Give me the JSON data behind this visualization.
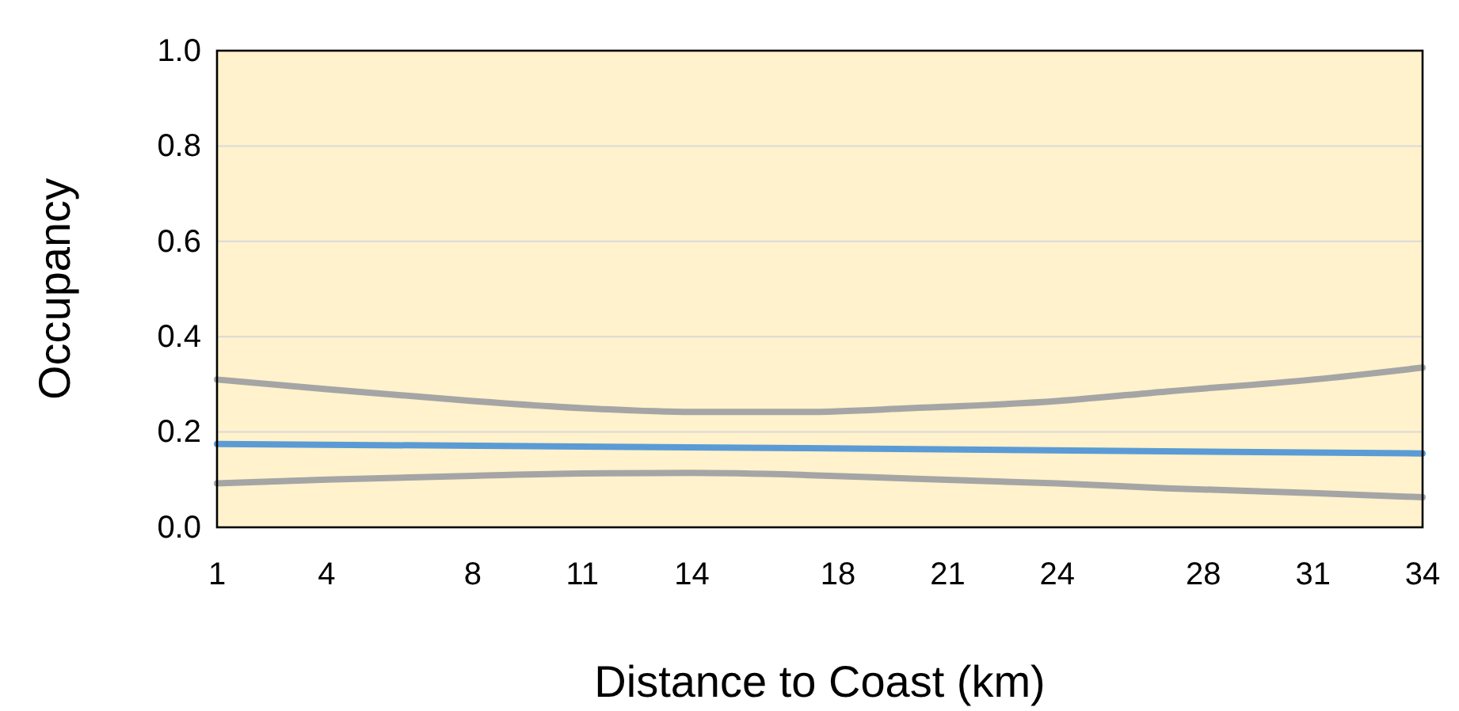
{
  "chart_data": {
    "type": "line",
    "xlabel": "Distance to Coast (km)",
    "ylabel": "Occupancy",
    "xlim": [
      1,
      34
    ],
    "xticks": [
      1,
      4,
      8,
      11,
      14,
      18,
      21,
      24,
      28,
      31,
      34
    ],
    "ylim": [
      0,
      1
    ],
    "yticks": [
      {
        "value": 0,
        "label": "0.0"
      },
      {
        "value": 0.2,
        "label": "0.2"
      },
      {
        "value": 0.4,
        "label": "0.4"
      },
      {
        "value": 0.6,
        "label": "0.6"
      },
      {
        "value": 0.8,
        "label": "0.8"
      },
      {
        "value": 1,
        "label": "1.0"
      }
    ],
    "grid": "y",
    "marker": "none",
    "line_style": "solid",
    "series": [
      {
        "color": "#a5a5a5",
        "x": [
          1,
          4,
          8,
          11,
          14,
          17,
          20,
          24,
          27,
          31,
          34
        ],
        "values": [
          0.31,
          0.29,
          0.265,
          0.25,
          0.242,
          0.242,
          0.25,
          0.265,
          0.285,
          0.31,
          0.335
        ]
      },
      {
        "color": "#a5a5a5",
        "x": [
          1,
          4,
          8,
          11,
          14,
          17,
          20,
          24,
          27,
          31,
          34
        ],
        "values": [
          0.092,
          0.1,
          0.108,
          0.113,
          0.114,
          0.11,
          0.102,
          0.092,
          0.082,
          0.072,
          0.063
        ]
      },
      {
        "color": "#5b9bd5",
        "x": [
          1,
          17,
          34
        ],
        "values": [
          0.175,
          0.166,
          0.155
        ]
      }
    ]
  }
}
